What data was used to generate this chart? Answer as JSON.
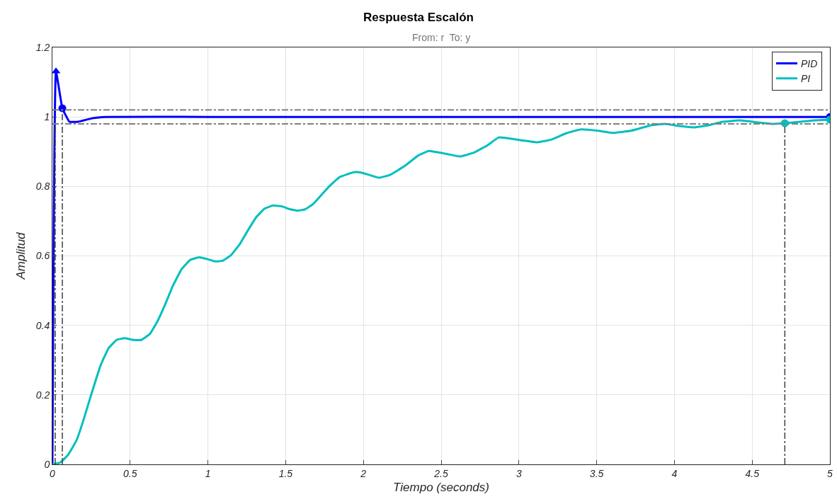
{
  "chart_data": {
    "type": "line",
    "title": "Respuesta Escalón",
    "subtitle": "From: r  To: y",
    "xlabel": "Tiempo (seconds)",
    "ylabel": "Amplitud",
    "xlim": [
      0,
      5
    ],
    "ylim": [
      0,
      1.2
    ],
    "xticks": [
      0,
      0.5,
      1,
      1.5,
      2,
      2.5,
      3,
      3.5,
      4,
      4.5,
      5
    ],
    "yticks": [
      0,
      0.2,
      0.4,
      0.6,
      0.8,
      1,
      1.2
    ],
    "grid": true,
    "legend": "top right",
    "marker": "none",
    "line_style": "solid",
    "series": [
      {
        "name": "PID",
        "color": "#0000ff",
        "x": [
          0,
          0.023,
          0.064,
          0.11,
          0.164,
          0.255,
          0.346,
          1,
          2,
          3,
          4,
          5
        ],
        "values": [
          0,
          1.131,
          1.025,
          0.986,
          0.986,
          0.996,
          1.0,
          1.0,
          1.0,
          1.0,
          1.0,
          1.0
        ]
      },
      {
        "name": "PI",
        "color": "#00bfbf",
        "x": [
          0,
          0.05,
          0.1,
          0.156,
          0.196,
          0.245,
          0.31,
          0.362,
          0.416,
          0.465,
          0.522,
          0.571,
          0.628,
          0.676,
          0.725,
          0.774,
          0.831,
          0.888,
          0.944,
          0.993,
          1.05,
          1.094,
          1.148,
          1.205,
          1.254,
          1.31,
          1.364,
          1.419,
          1.473,
          1.522,
          1.576,
          1.624,
          1.676,
          1.725,
          1.782,
          1.847,
          1.94,
          1.985,
          2.1,
          2.17,
          2.26,
          2.35,
          2.42,
          2.53,
          2.62,
          2.71,
          2.8,
          2.87,
          3.01,
          3.12,
          3.21,
          3.31,
          3.4,
          3.51,
          3.6,
          3.72,
          3.85,
          3.94,
          4.03,
          4.13,
          4.22,
          4.31,
          4.42,
          4.54,
          4.63,
          4.71,
          4.81,
          4.9,
          5
        ],
        "values": [
          0,
          0.005,
          0.027,
          0.07,
          0.122,
          0.194,
          0.285,
          0.335,
          0.359,
          0.363,
          0.358,
          0.358,
          0.376,
          0.412,
          0.46,
          0.513,
          0.562,
          0.589,
          0.596,
          0.591,
          0.584,
          0.586,
          0.602,
          0.634,
          0.671,
          0.711,
          0.736,
          0.745,
          0.743,
          0.735,
          0.73,
          0.734,
          0.749,
          0.773,
          0.801,
          0.827,
          0.841,
          0.84,
          0.825,
          0.833,
          0.857,
          0.888,
          0.902,
          0.894,
          0.886,
          0.897,
          0.919,
          0.941,
          0.933,
          0.927,
          0.935,
          0.954,
          0.964,
          0.96,
          0.954,
          0.96,
          0.976,
          0.98,
          0.974,
          0.97,
          0.976,
          0.986,
          0.99,
          0.984,
          0.98,
          0.982,
          0.986,
          0.99,
          0.992
        ]
      },
      {
        "type": "scatter",
        "marker": "triangle",
        "color": "#0000ff",
        "x": [
          0.023
        ],
        "values": [
          1.131
        ]
      },
      {
        "type": "scatter",
        "marker": "circle",
        "color": "#0000ff",
        "x": [
          0.064,
          5
        ],
        "values": [
          1.025,
          1.0
        ]
      },
      {
        "type": "scatter",
        "marker": "circle",
        "color": "#00bfbf",
        "x": [
          4.71,
          5
        ],
        "values": [
          0.982,
          0.992
        ]
      },
      {
        "color": "#404040",
        "line_style": "dashed",
        "x": [
          0.018,
          0.018
        ],
        "values": [
          0,
          0.98
        ]
      },
      {
        "color": "#404040",
        "line_style": "dashed",
        "x": [
          0.064,
          0.064
        ],
        "values": [
          0,
          1.02
        ]
      },
      {
        "color": "#404040",
        "line_style": "dashed",
        "x": [
          4.71,
          4.71
        ],
        "values": [
          0,
          0.98
        ]
      }
    ],
    "ref_lines": [
      {
        "axis": "y",
        "value": 1.02,
        "color": "#808080",
        "line_style": "dashed"
      },
      {
        "axis": "y",
        "value": 0.98,
        "color": "#808080",
        "line_style": "dashed"
      }
    ]
  }
}
